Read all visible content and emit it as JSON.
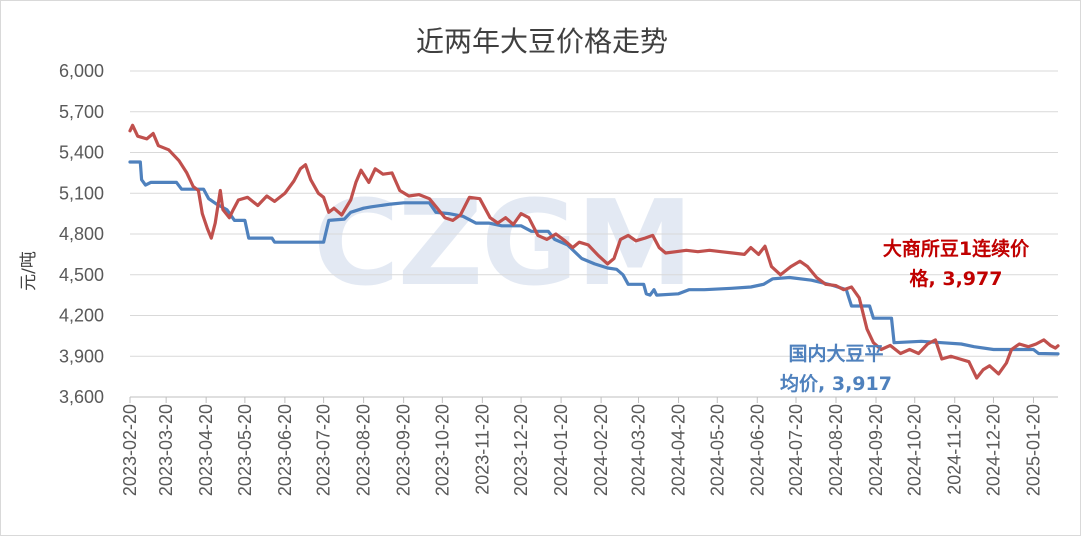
{
  "chart_data": {
    "type": "line",
    "title": "近两年大豆价格走势",
    "ylabel": "元/吨",
    "xlabel": "",
    "watermark": "CZGM",
    "ylim": [
      3600,
      6000
    ],
    "yticks": [
      3600,
      3900,
      4200,
      4500,
      4800,
      5100,
      5400,
      5700,
      6000
    ],
    "ytick_labels": [
      "3,600",
      "3,900",
      "4,200",
      "4,500",
      "4,800",
      "5,100",
      "5,400",
      "5,700",
      "6,000"
    ],
    "xlim": [
      "2023-02-20",
      "2025-02-08"
    ],
    "categories": [
      "2023-02-20",
      "2023-03-20",
      "2023-04-20",
      "2023-05-20",
      "2023-06-20",
      "2023-07-20",
      "2023-08-20",
      "2023-09-20",
      "2023-10-20",
      "2023-11-20",
      "2023-12-20",
      "2024-01-20",
      "2024-02-20",
      "2024-03-20",
      "2024-04-20",
      "2024-05-20",
      "2024-06-20",
      "2024-07-20",
      "2024-08-20",
      "2024-09-20",
      "2024-10-20",
      "2024-11-20",
      "2024-12-20",
      "2025-01-20"
    ],
    "grid": true,
    "series": [
      {
        "name": "大商所豆1连续价格",
        "color": "#c0504d",
        "annotation": [
          "大商所豆1连续价",
          "格, 3,977"
        ],
        "points": [
          [
            "2023-02-20",
            5560
          ],
          [
            "2023-02-22",
            5600
          ],
          [
            "2023-02-26",
            5520
          ],
          [
            "2023-03-05",
            5500
          ],
          [
            "2023-03-10",
            5540
          ],
          [
            "2023-03-14",
            5450
          ],
          [
            "2023-03-22",
            5420
          ],
          [
            "2023-03-30",
            5340
          ],
          [
            "2023-04-05",
            5250
          ],
          [
            "2023-04-10",
            5150
          ],
          [
            "2023-04-14",
            5120
          ],
          [
            "2023-04-17",
            4950
          ],
          [
            "2023-04-21",
            4840
          ],
          [
            "2023-04-24",
            4770
          ],
          [
            "2023-04-27",
            4880
          ],
          [
            "2023-05-01",
            5120
          ],
          [
            "2023-05-03",
            4980
          ],
          [
            "2023-05-08",
            4920
          ],
          [
            "2023-05-11",
            4980
          ],
          [
            "2023-05-15",
            5050
          ],
          [
            "2023-05-22",
            5070
          ],
          [
            "2023-05-30",
            5010
          ],
          [
            "2023-06-06",
            5080
          ],
          [
            "2023-06-12",
            5040
          ],
          [
            "2023-06-20",
            5100
          ],
          [
            "2023-06-27",
            5190
          ],
          [
            "2023-07-02",
            5280
          ],
          [
            "2023-07-06",
            5310
          ],
          [
            "2023-07-10",
            5200
          ],
          [
            "2023-07-16",
            5100
          ],
          [
            "2023-07-20",
            5070
          ],
          [
            "2023-07-24",
            4960
          ],
          [
            "2023-07-28",
            4990
          ],
          [
            "2023-08-03",
            4940
          ],
          [
            "2023-08-10",
            5050
          ],
          [
            "2023-08-14",
            5180
          ],
          [
            "2023-08-18",
            5270
          ],
          [
            "2023-08-24",
            5180
          ],
          [
            "2023-08-29",
            5280
          ],
          [
            "2023-09-04",
            5240
          ],
          [
            "2023-09-11",
            5250
          ],
          [
            "2023-09-17",
            5120
          ],
          [
            "2023-09-24",
            5080
          ],
          [
            "2023-10-02",
            5090
          ],
          [
            "2023-10-10",
            5060
          ],
          [
            "2023-10-16",
            4990
          ],
          [
            "2023-10-22",
            4920
          ],
          [
            "2023-10-28",
            4900
          ],
          [
            "2023-11-03",
            4940
          ],
          [
            "2023-11-10",
            5070
          ],
          [
            "2023-11-18",
            5060
          ],
          [
            "2023-11-26",
            4920
          ],
          [
            "2023-12-02",
            4880
          ],
          [
            "2023-12-08",
            4920
          ],
          [
            "2023-12-14",
            4870
          ],
          [
            "2023-12-20",
            4950
          ],
          [
            "2023-12-26",
            4920
          ],
          [
            "2024-01-02",
            4790
          ],
          [
            "2024-01-09",
            4760
          ],
          [
            "2024-01-16",
            4800
          ],
          [
            "2024-01-23",
            4750
          ],
          [
            "2024-01-29",
            4700
          ],
          [
            "2024-02-03",
            4740
          ],
          [
            "2024-02-10",
            4720
          ],
          [
            "2024-02-18",
            4640
          ],
          [
            "2024-02-25",
            4580
          ],
          [
            "2024-03-01",
            4620
          ],
          [
            "2024-03-06",
            4760
          ],
          [
            "2024-03-12",
            4790
          ],
          [
            "2024-03-18",
            4750
          ],
          [
            "2024-03-25",
            4770
          ],
          [
            "2024-03-31",
            4790
          ],
          [
            "2024-04-05",
            4700
          ],
          [
            "2024-04-10",
            4660
          ],
          [
            "2024-04-18",
            4670
          ],
          [
            "2024-04-26",
            4680
          ],
          [
            "2024-05-05",
            4670
          ],
          [
            "2024-05-14",
            4680
          ],
          [
            "2024-05-23",
            4670
          ],
          [
            "2024-06-01",
            4660
          ],
          [
            "2024-06-10",
            4650
          ],
          [
            "2024-06-15",
            4700
          ],
          [
            "2024-06-21",
            4650
          ],
          [
            "2024-06-26",
            4710
          ],
          [
            "2024-07-01",
            4560
          ],
          [
            "2024-07-08",
            4500
          ],
          [
            "2024-07-16",
            4560
          ],
          [
            "2024-07-23",
            4600
          ],
          [
            "2024-07-29",
            4560
          ],
          [
            "2024-08-05",
            4480
          ],
          [
            "2024-08-12",
            4430
          ],
          [
            "2024-08-20",
            4420
          ],
          [
            "2024-08-26",
            4390
          ],
          [
            "2024-09-01",
            4410
          ],
          [
            "2024-09-07",
            4330
          ],
          [
            "2024-09-13",
            4100
          ],
          [
            "2024-09-18",
            4000
          ],
          [
            "2024-09-24",
            3950
          ],
          [
            "2024-10-01",
            3980
          ],
          [
            "2024-10-09",
            3920
          ],
          [
            "2024-10-16",
            3950
          ],
          [
            "2024-10-23",
            3920
          ],
          [
            "2024-10-30",
            3990
          ],
          [
            "2024-11-05",
            4020
          ],
          [
            "2024-11-10",
            3880
          ],
          [
            "2024-11-17",
            3900
          ],
          [
            "2024-11-24",
            3880
          ],
          [
            "2024-12-01",
            3860
          ],
          [
            "2024-12-07",
            3740
          ],
          [
            "2024-12-12",
            3800
          ],
          [
            "2024-12-17",
            3830
          ],
          [
            "2024-12-24",
            3770
          ],
          [
            "2024-12-30",
            3850
          ],
          [
            "2025-01-03",
            3950
          ],
          [
            "2025-01-09",
            3990
          ],
          [
            "2025-01-16",
            3970
          ],
          [
            "2025-01-22",
            3990
          ],
          [
            "2025-01-28",
            4020
          ],
          [
            "2025-02-02",
            3980
          ],
          [
            "2025-02-06",
            3960
          ],
          [
            "2025-02-08",
            3977
          ]
        ]
      },
      {
        "name": "国内大豆平均价格",
        "color": "#4f81bd",
        "annotation": [
          "国内大豆平",
          "均价, 3,917"
        ],
        "points": [
          [
            "2023-02-20",
            5330
          ],
          [
            "2023-02-28",
            5330
          ],
          [
            "2023-03-01",
            5200
          ],
          [
            "2023-03-04",
            5160
          ],
          [
            "2023-03-08",
            5180
          ],
          [
            "2023-03-14",
            5180
          ],
          [
            "2023-03-28",
            5180
          ],
          [
            "2023-04-01",
            5130
          ],
          [
            "2023-04-18",
            5130
          ],
          [
            "2023-04-22",
            5060
          ],
          [
            "2023-04-28",
            5020
          ],
          [
            "2023-05-06",
            4980
          ],
          [
            "2023-05-12",
            4900
          ],
          [
            "2023-05-20",
            4900
          ],
          [
            "2023-05-23",
            4770
          ],
          [
            "2023-06-10",
            4770
          ],
          [
            "2023-06-12",
            4740
          ],
          [
            "2023-07-10",
            4740
          ],
          [
            "2023-07-20",
            4740
          ],
          [
            "2023-07-24",
            4900
          ],
          [
            "2023-08-05",
            4910
          ],
          [
            "2023-08-10",
            4960
          ],
          [
            "2023-08-20",
            4990
          ],
          [
            "2023-08-26",
            5000
          ],
          [
            "2023-09-10",
            5020
          ],
          [
            "2023-09-20",
            5030
          ],
          [
            "2023-10-10",
            5030
          ],
          [
            "2023-10-15",
            4960
          ],
          [
            "2023-10-25",
            4950
          ],
          [
            "2023-11-05",
            4930
          ],
          [
            "2023-11-15",
            4880
          ],
          [
            "2023-11-25",
            4880
          ],
          [
            "2023-12-05",
            4860
          ],
          [
            "2023-12-20",
            4860
          ],
          [
            "2023-12-28",
            4820
          ],
          [
            "2024-01-10",
            4820
          ],
          [
            "2024-01-15",
            4760
          ],
          [
            "2024-01-25",
            4720
          ],
          [
            "2024-02-05",
            4620
          ],
          [
            "2024-02-15",
            4580
          ],
          [
            "2024-02-25",
            4550
          ],
          [
            "2024-03-03",
            4540
          ],
          [
            "2024-03-08",
            4500
          ],
          [
            "2024-03-12",
            4430
          ],
          [
            "2024-03-24",
            4430
          ],
          [
            "2024-03-26",
            4360
          ],
          [
            "2024-03-29",
            4350
          ],
          [
            "2024-04-01",
            4390
          ],
          [
            "2024-04-03",
            4350
          ],
          [
            "2024-04-20",
            4360
          ],
          [
            "2024-04-28",
            4390
          ],
          [
            "2024-05-10",
            4390
          ],
          [
            "2024-05-31",
            4400
          ],
          [
            "2024-06-15",
            4410
          ],
          [
            "2024-06-25",
            4430
          ],
          [
            "2024-07-02",
            4470
          ],
          [
            "2024-07-15",
            4480
          ],
          [
            "2024-08-01",
            4460
          ],
          [
            "2024-08-10",
            4440
          ],
          [
            "2024-08-18",
            4420
          ],
          [
            "2024-08-28",
            4390
          ],
          [
            "2024-09-01",
            4270
          ],
          [
            "2024-09-15",
            4270
          ],
          [
            "2024-09-18",
            4180
          ],
          [
            "2024-10-02",
            4180
          ],
          [
            "2024-10-04",
            4000
          ],
          [
            "2024-10-25",
            4010
          ],
          [
            "2024-11-10",
            4000
          ],
          [
            "2024-11-25",
            3990
          ],
          [
            "2024-12-05",
            3970
          ],
          [
            "2024-12-20",
            3950
          ],
          [
            "2025-01-05",
            3950
          ],
          [
            "2025-01-20",
            3950
          ],
          [
            "2025-01-24",
            3920
          ],
          [
            "2025-02-08",
            3917
          ]
        ]
      }
    ]
  }
}
